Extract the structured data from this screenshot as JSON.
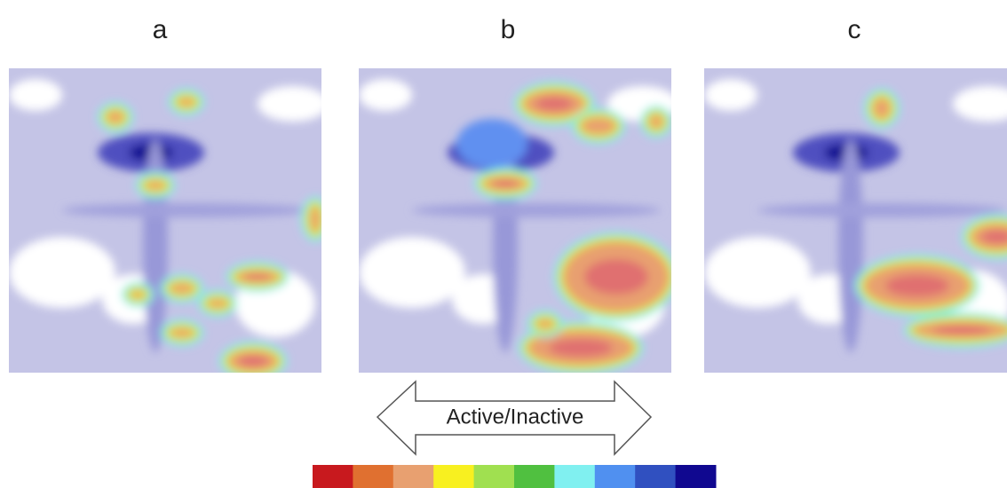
{
  "panels": [
    {
      "label": "a"
    },
    {
      "label": "b"
    },
    {
      "label": "c"
    }
  ],
  "arrow": {
    "label": "Active/Inactive"
  },
  "colorbar": {
    "colors": [
      "#c8191e",
      "#e07030",
      "#e8a070",
      "#f8f020",
      "#a0e050",
      "#50c040",
      "#80f0f0",
      "#5090f0",
      "#3050c0",
      "#100890"
    ]
  }
}
